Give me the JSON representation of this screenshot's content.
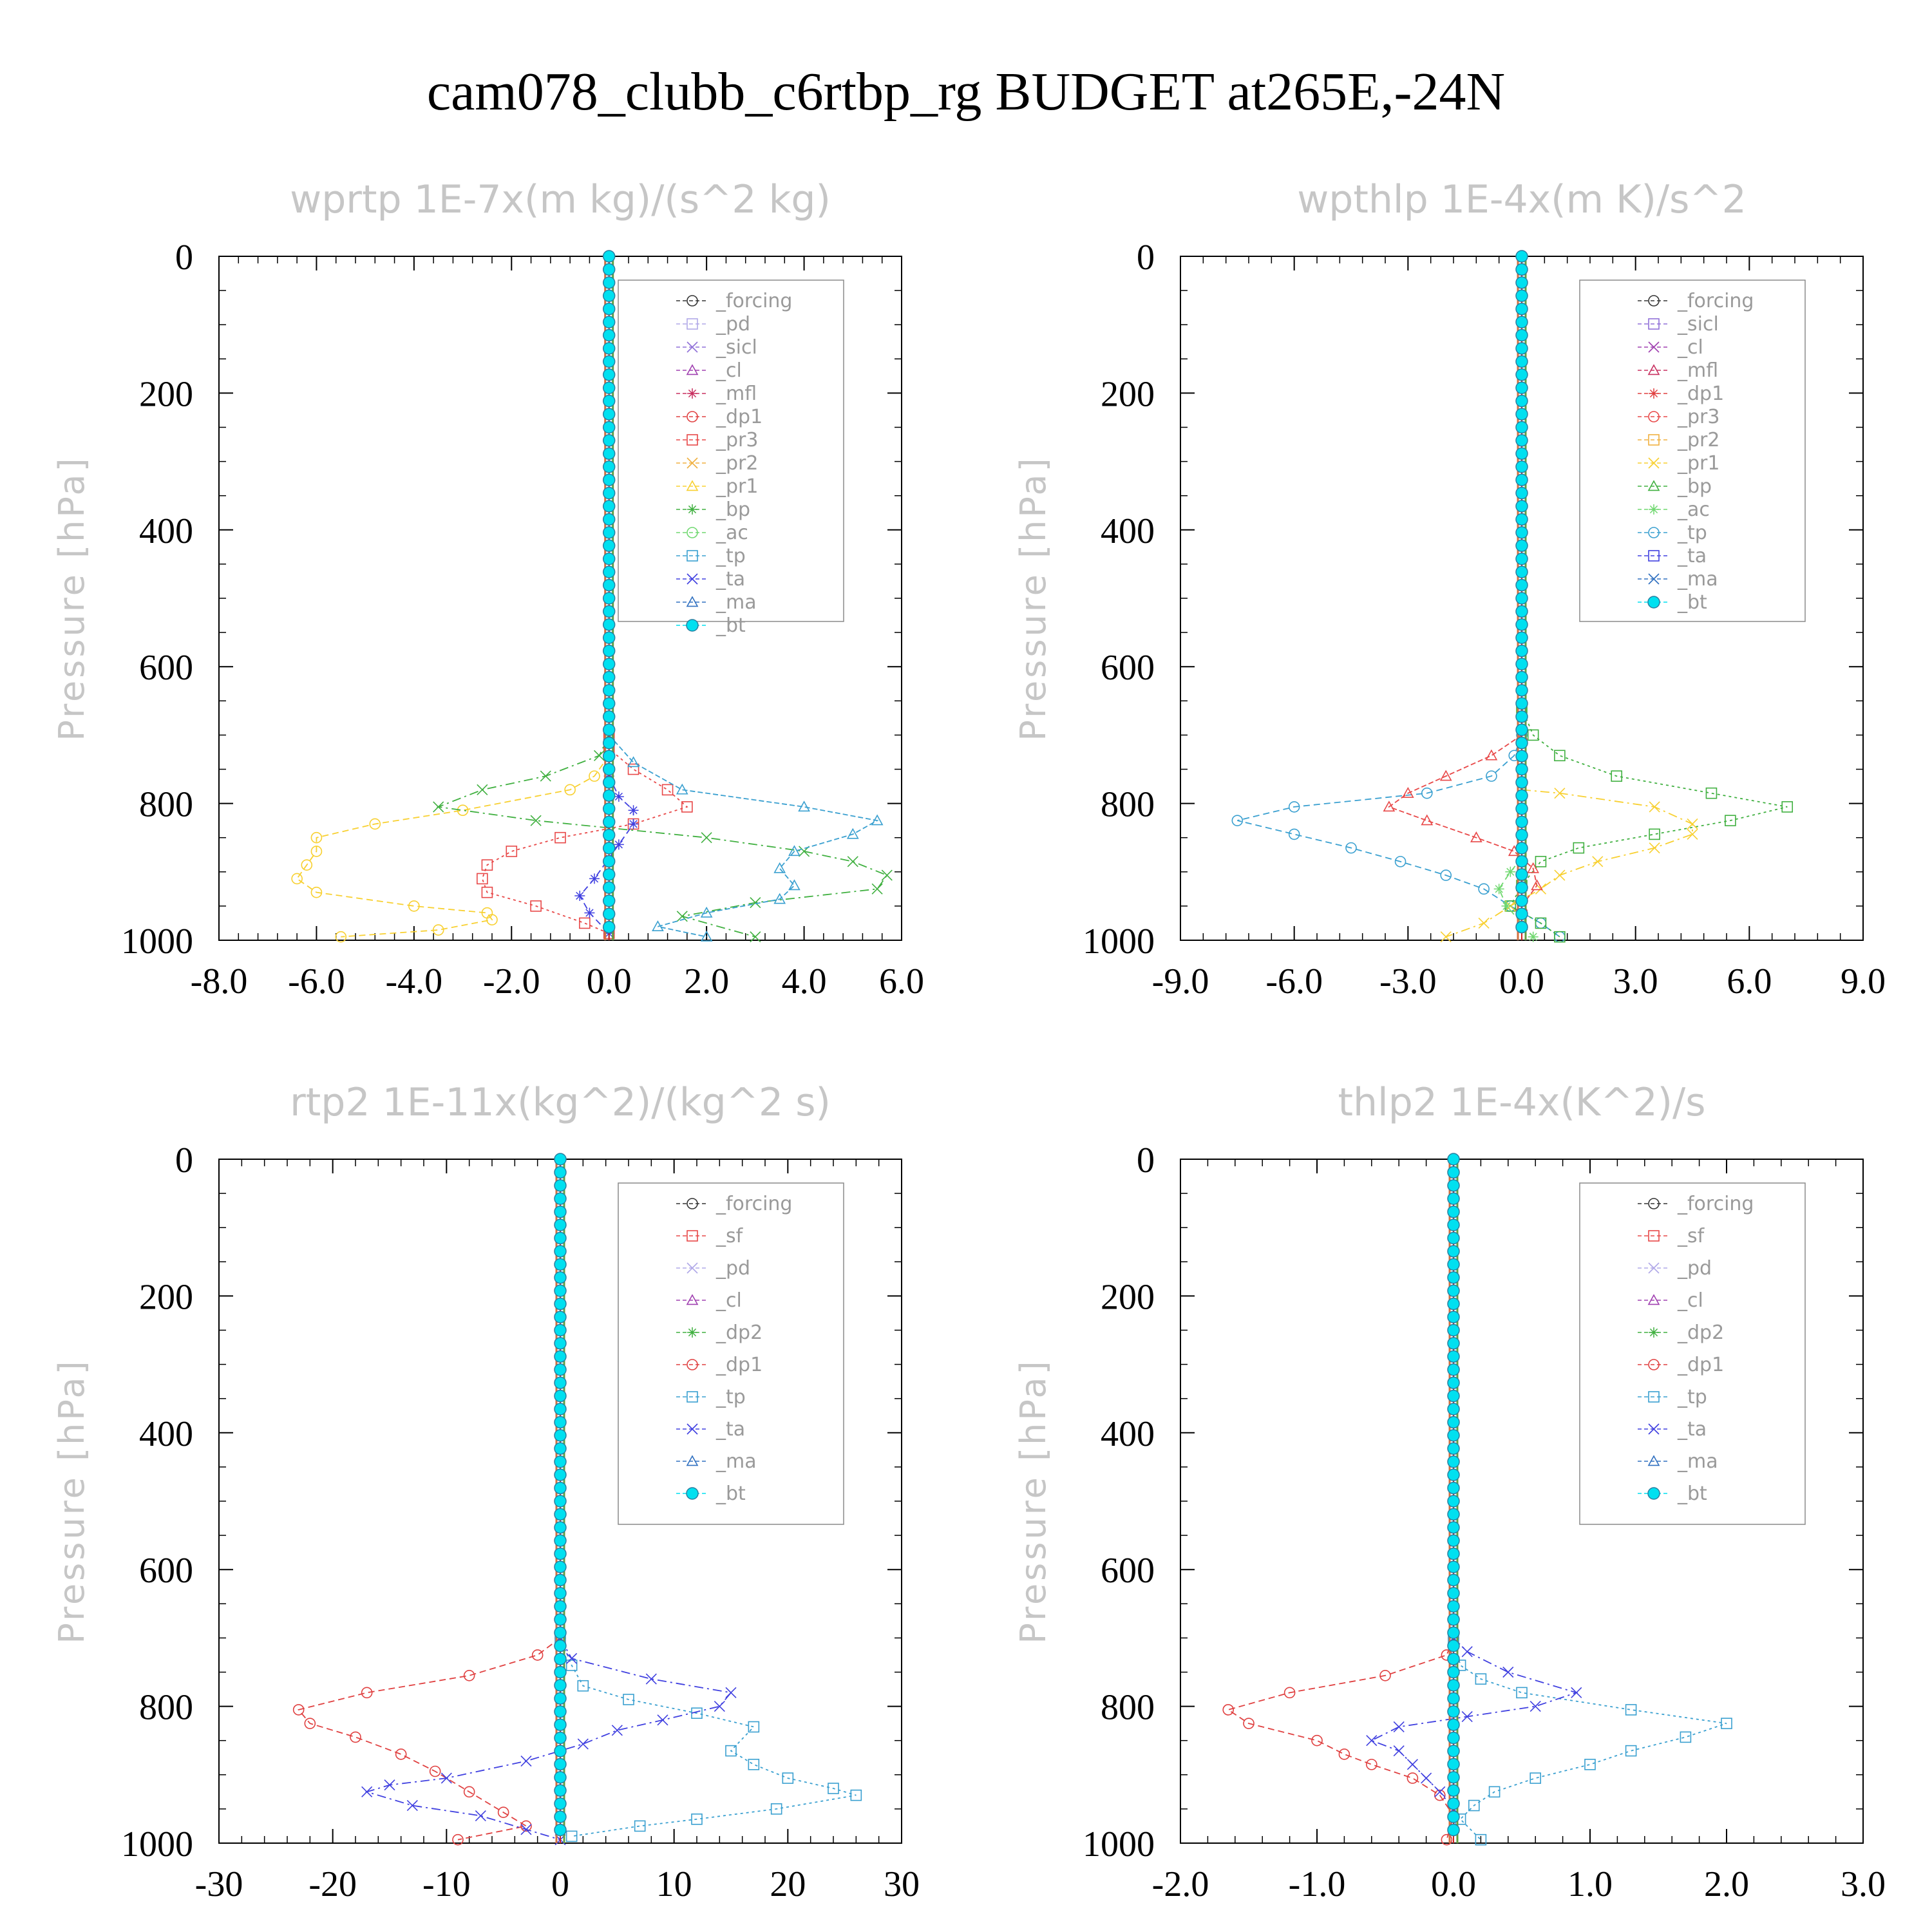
{
  "title": "cam078_clubb_c6rtbp_rg  BUDGET at265E,-24N",
  "colors": {
    "_forcing": "#333333",
    "_pd": "#b0a8e8",
    "_sicl": "#9070d8",
    "_cl": "#a040b0",
    "_mfl": "#c83060",
    "_dp1": "#e04040",
    "_pr3": "#e84848",
    "_pr2": "#f0b040",
    "_pr1": "#f8d030",
    "_bp": "#40b040",
    "_ac": "#70d870",
    "_tp": "#3aa0d0",
    "_ta": "#4040e0",
    "_ma": "#3070c0",
    "_bt": "#00e0f0",
    "_sf": "#e84848",
    "_dp2": "#40b040"
  },
  "chart_data": [
    {
      "type": "line",
      "title": "wprtp  1E-7x(m kg)/(s^2 kg)",
      "ylabel": "Pressure [hPa]",
      "xlim": [
        -8,
        6
      ],
      "ylim": [
        0,
        1000
      ],
      "xticks": [
        "-8.0",
        "-6.0",
        "-4.0",
        "-2.0",
        "0.0",
        "2.0",
        "4.0",
        "6.0"
      ],
      "yticks": [
        "0",
        "200",
        "400",
        "600",
        "800",
        "1000"
      ],
      "legend": [
        "_forcing",
        "_pd",
        "_sicl",
        "_cl",
        "_mfl",
        "_dp1",
        "_pr3",
        "_pr2",
        "_pr1",
        "_bp",
        "_ac",
        "_tp",
        "_ta",
        "_ma",
        "_bt"
      ],
      "series": [
        {
          "name": "_pr1",
          "points": [
            [
              0,
              700
            ],
            [
              0,
              730
            ],
            [
              -0.3,
              760
            ],
            [
              -0.8,
              780
            ],
            [
              -3.0,
              810
            ],
            [
              -4.8,
              830
            ],
            [
              -6.0,
              850
            ],
            [
              -6.0,
              870
            ],
            [
              -6.2,
              890
            ],
            [
              -6.4,
              910
            ],
            [
              -6.0,
              930
            ],
            [
              -4.0,
              950
            ],
            [
              -2.5,
              960
            ],
            [
              -2.4,
              970
            ],
            [
              -3.5,
              985
            ],
            [
              -5.5,
              995
            ]
          ]
        },
        {
          "name": "_pr3",
          "points": [
            [
              0,
              700
            ],
            [
              0,
              720
            ],
            [
              0.5,
              750
            ],
            [
              1.2,
              780
            ],
            [
              1.6,
              805
            ],
            [
              0.5,
              830
            ],
            [
              -1.0,
              850
            ],
            [
              -2.0,
              870
            ],
            [
              -2.5,
              890
            ],
            [
              -2.6,
              910
            ],
            [
              -2.5,
              930
            ],
            [
              -1.5,
              950
            ],
            [
              -0.5,
              975
            ],
            [
              0,
              990
            ]
          ]
        },
        {
          "name": "_bp",
          "points": [
            [
              0,
              700
            ],
            [
              -0.2,
              730
            ],
            [
              -1.3,
              760
            ],
            [
              -2.6,
              780
            ],
            [
              -3.5,
              805
            ],
            [
              -1.5,
              825
            ],
            [
              2.0,
              850
            ],
            [
              4.0,
              870
            ],
            [
              5.0,
              885
            ],
            [
              5.7,
              905
            ],
            [
              5.5,
              925
            ],
            [
              3.0,
              945
            ],
            [
              1.5,
              965
            ],
            [
              3.0,
              995
            ]
          ]
        },
        {
          "name": "_tp",
          "points": [
            [
              0,
              700
            ],
            [
              0.5,
              740
            ],
            [
              1.5,
              780
            ],
            [
              4.0,
              805
            ],
            [
              5.5,
              825
            ],
            [
              5.0,
              845
            ],
            [
              3.8,
              870
            ],
            [
              3.5,
              895
            ],
            [
              3.8,
              920
            ],
            [
              3.5,
              940
            ],
            [
              2.0,
              960
            ],
            [
              1.0,
              980
            ],
            [
              2.0,
              995
            ]
          ]
        },
        {
          "name": "_ta",
          "points": [
            [
              0,
              760
            ],
            [
              0.2,
              790
            ],
            [
              0.5,
              810
            ],
            [
              0.5,
              830
            ],
            [
              0.2,
              860
            ],
            [
              0,
              880
            ],
            [
              -0.3,
              910
            ],
            [
              -0.6,
              935
            ],
            [
              -0.4,
              960
            ],
            [
              0,
              990
            ]
          ]
        },
        {
          "name": "_bt",
          "points": [
            [
              0,
              0
            ],
            [
              0,
              1000
            ]
          ],
          "markers": true
        }
      ]
    },
    {
      "type": "line",
      "title": "wpthlp  1E-4x(m K)/s^2",
      "ylabel": "Pressure [hPa]",
      "xlim": [
        -9,
        9
      ],
      "ylim": [
        0,
        1000
      ],
      "xticks": [
        "-9.0",
        "-6.0",
        "-3.0",
        "0.0",
        "3.0",
        "6.0",
        "9.0"
      ],
      "yticks": [
        "0",
        "200",
        "400",
        "600",
        "800",
        "1000"
      ],
      "legend": [
        "_forcing",
        "_sicl",
        "_cl",
        "_mfl",
        "_dp1",
        "_pr3",
        "_pr2",
        "_pr1",
        "_bp",
        "_ac",
        "_tp",
        "_ta",
        "_ma",
        "_bt"
      ],
      "series": [
        {
          "name": "_tp",
          "points": [
            [
              0,
              700
            ],
            [
              -0.2,
              730
            ],
            [
              -0.8,
              760
            ],
            [
              -2.5,
              785
            ],
            [
              -6.0,
              805
            ],
            [
              -7.5,
              825
            ],
            [
              -6.0,
              845
            ],
            [
              -4.5,
              865
            ],
            [
              -3.2,
              885
            ],
            [
              -2.0,
              905
            ],
            [
              -1.0,
              925
            ],
            [
              -0.3,
              950
            ],
            [
              0.5,
              975
            ],
            [
              1.0,
              995
            ]
          ]
        },
        {
          "name": "_bp",
          "points": [
            [
              0,
              660
            ],
            [
              0.3,
              700
            ],
            [
              1.0,
              730
            ],
            [
              2.5,
              760
            ],
            [
              5.0,
              785
            ],
            [
              7.0,
              805
            ],
            [
              5.5,
              825
            ],
            [
              3.5,
              845
            ],
            [
              1.5,
              865
            ],
            [
              0.5,
              885
            ],
            [
              0,
              920
            ],
            [
              -0.3,
              950
            ],
            [
              0.5,
              975
            ],
            [
              1.0,
              995
            ]
          ]
        },
        {
          "name": "_pr1",
          "points": [
            [
              0,
              780
            ],
            [
              1.0,
              785
            ],
            [
              3.5,
              805
            ],
            [
              4.5,
              830
            ],
            [
              4.5,
              845
            ],
            [
              3.5,
              865
            ],
            [
              2.0,
              885
            ],
            [
              1.0,
              905
            ],
            [
              0.5,
              925
            ],
            [
              -0.3,
              950
            ],
            [
              -1.0,
              975
            ],
            [
              -2.0,
              995
            ]
          ]
        },
        {
          "name": "_pr3",
          "points": [
            [
              0,
              700
            ],
            [
              -0.8,
              730
            ],
            [
              -2.0,
              760
            ],
            [
              -3.0,
              785
            ],
            [
              -3.5,
              805
            ],
            [
              -2.5,
              825
            ],
            [
              -1.2,
              850
            ],
            [
              -0.2,
              870
            ],
            [
              0.3,
              895
            ],
            [
              0.4,
              920
            ],
            [
              0,
              950
            ]
          ]
        },
        {
          "name": "_ac",
          "points": [
            [
              0,
              880
            ],
            [
              -0.3,
              900
            ],
            [
              -0.6,
              925
            ],
            [
              -0.4,
              950
            ],
            [
              0,
              975
            ],
            [
              0.3,
              995
            ]
          ]
        },
        {
          "name": "_bt",
          "points": [
            [
              0,
              0
            ],
            [
              0,
              1000
            ]
          ],
          "markers": true
        }
      ]
    },
    {
      "type": "line",
      "title": "rtp2  1E-11x(kg^2)/(kg^2 s)",
      "ylabel": "Pressure [hPa]",
      "xlim": [
        -30,
        30
      ],
      "ylim": [
        0,
        1000
      ],
      "xticks": [
        "-30",
        "-20",
        "-10",
        "0",
        "10",
        "20",
        "30"
      ],
      "yticks": [
        "0",
        "200",
        "400",
        "600",
        "800",
        "1000"
      ],
      "legend": [
        "_forcing",
        "_sf",
        "_pd",
        "_cl",
        "_dp2",
        "_dp1",
        "_tp",
        "_ta",
        "_ma",
        "_bt"
      ],
      "series": [
        {
          "name": "_dp1",
          "points": [
            [
              0,
              700
            ],
            [
              -2.0,
              725
            ],
            [
              -8.0,
              755
            ],
            [
              -17.0,
              780
            ],
            [
              -23.0,
              805
            ],
            [
              -22.0,
              825
            ],
            [
              -18.0,
              845
            ],
            [
              -14.0,
              870
            ],
            [
              -11.0,
              895
            ],
            [
              -8.0,
              925
            ],
            [
              -5.0,
              955
            ],
            [
              -3.0,
              975
            ],
            [
              -9.0,
              995
            ]
          ]
        },
        {
          "name": "_tp",
          "points": [
            [
              0,
              700
            ],
            [
              1.0,
              740
            ],
            [
              2.0,
              770
            ],
            [
              6.0,
              790
            ],
            [
              12.0,
              810
            ],
            [
              17.0,
              830
            ],
            [
              15.0,
              865
            ],
            [
              17.0,
              885
            ],
            [
              20.0,
              905
            ],
            [
              24.0,
              920
            ],
            [
              26.0,
              930
            ],
            [
              19.0,
              950
            ],
            [
              12.0,
              965
            ],
            [
              7.0,
              975
            ],
            [
              1.0,
              990
            ]
          ]
        },
        {
          "name": "_ta",
          "points": [
            [
              0,
              700
            ],
            [
              1.0,
              730
            ],
            [
              8.0,
              760
            ],
            [
              15.0,
              780
            ],
            [
              14.0,
              800
            ],
            [
              9.0,
              820
            ],
            [
              5.0,
              835
            ],
            [
              2.0,
              855
            ],
            [
              -3.0,
              880
            ],
            [
              -10.0,
              905
            ],
            [
              -15.0,
              915
            ],
            [
              -17.0,
              925
            ],
            [
              -13.0,
              945
            ],
            [
              -7.0,
              960
            ],
            [
              -3.0,
              980
            ],
            [
              0,
              995
            ]
          ]
        },
        {
          "name": "_bt",
          "points": [
            [
              0,
              0
            ],
            [
              0,
              1000
            ]
          ],
          "markers": true
        }
      ]
    },
    {
      "type": "line",
      "title": "thlp2  1E-4x(K^2)/s",
      "ylabel": "Pressure [hPa]",
      "xlim": [
        -2,
        3
      ],
      "ylim": [
        0,
        1000
      ],
      "xticks": [
        "-2.0",
        "-1.0",
        "0.0",
        "1.0",
        "2.0",
        "3.0"
      ],
      "yticks": [
        "0",
        "200",
        "400",
        "600",
        "800",
        "1000"
      ],
      "legend": [
        "_forcing",
        "_sf",
        "_pd",
        "_cl",
        "_dp2",
        "_dp1",
        "_tp",
        "_ta",
        "_ma",
        "_bt"
      ],
      "series": [
        {
          "name": "_dp1",
          "points": [
            [
              0,
              700
            ],
            [
              -0.05,
              725
            ],
            [
              -0.5,
              755
            ],
            [
              -1.2,
              780
            ],
            [
              -1.65,
              805
            ],
            [
              -1.5,
              825
            ],
            [
              -1.0,
              850
            ],
            [
              -0.8,
              870
            ],
            [
              -0.6,
              885
            ],
            [
              -0.3,
              905
            ],
            [
              -0.1,
              930
            ],
            [
              0,
              960
            ],
            [
              -0.05,
              995
            ]
          ]
        },
        {
          "name": "_tp",
          "points": [
            [
              0,
              700
            ],
            [
              0.05,
              740
            ],
            [
              0.2,
              760
            ],
            [
              0.5,
              780
            ],
            [
              1.3,
              805
            ],
            [
              2.0,
              825
            ],
            [
              1.7,
              845
            ],
            [
              1.3,
              865
            ],
            [
              1.0,
              885
            ],
            [
              0.6,
              905
            ],
            [
              0.3,
              925
            ],
            [
              0.15,
              945
            ],
            [
              0.05,
              965
            ],
            [
              0.2,
              995
            ]
          ]
        },
        {
          "name": "_ta",
          "points": [
            [
              0,
              700
            ],
            [
              0.1,
              720
            ],
            [
              0.4,
              750
            ],
            [
              0.9,
              780
            ],
            [
              0.6,
              800
            ],
            [
              0.1,
              815
            ],
            [
              -0.4,
              830
            ],
            [
              -0.6,
              850
            ],
            [
              -0.4,
              865
            ],
            [
              -0.3,
              885
            ],
            [
              -0.2,
              905
            ],
            [
              -0.1,
              925
            ],
            [
              0,
              950
            ]
          ]
        },
        {
          "name": "_bt",
          "points": [
            [
              0,
              0
            ],
            [
              0,
              1000
            ]
          ],
          "markers": true
        }
      ]
    }
  ]
}
